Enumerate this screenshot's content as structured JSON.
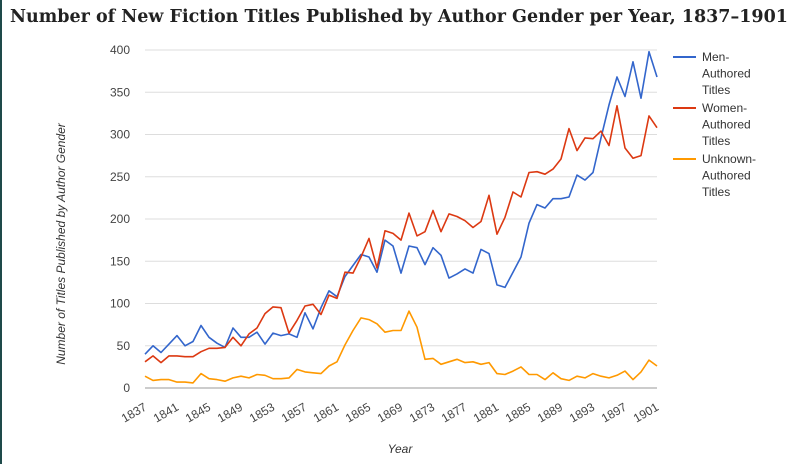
{
  "chart_data": {
    "type": "line",
    "title": "Number of New Fiction Titles Published by Author Gender per Year, 1837–1901",
    "xlabel": "Year",
    "ylabel": "Number of Titles Published by Author Gender",
    "ylim": [
      0,
      400
    ],
    "yticks": [
      0,
      50,
      100,
      150,
      200,
      250,
      300,
      350,
      400
    ],
    "xlim": [
      1837,
      1901
    ],
    "xticks": [
      1837,
      1841,
      1845,
      1849,
      1853,
      1857,
      1861,
      1865,
      1869,
      1873,
      1877,
      1881,
      1885,
      1889,
      1893,
      1897,
      1901
    ],
    "grid": "horizontal",
    "legend_position": "right",
    "x": [
      1837,
      1838,
      1839,
      1840,
      1841,
      1842,
      1843,
      1844,
      1845,
      1846,
      1847,
      1848,
      1849,
      1850,
      1851,
      1852,
      1853,
      1854,
      1855,
      1856,
      1857,
      1858,
      1859,
      1860,
      1861,
      1862,
      1863,
      1864,
      1865,
      1866,
      1867,
      1868,
      1869,
      1870,
      1871,
      1872,
      1873,
      1874,
      1875,
      1876,
      1877,
      1878,
      1879,
      1880,
      1881,
      1882,
      1883,
      1884,
      1885,
      1886,
      1887,
      1888,
      1889,
      1890,
      1891,
      1892,
      1893,
      1894,
      1895,
      1896,
      1897,
      1898,
      1899,
      1900,
      1901
    ],
    "series": [
      {
        "name": "Men-Authored Titles",
        "color": "#3366cc",
        "values": [
          40,
          50,
          42,
          52,
          62,
          50,
          55,
          74,
          60,
          53,
          48,
          71,
          60,
          60,
          66,
          52,
          65,
          62,
          64,
          60,
          89,
          70,
          95,
          115,
          108,
          132,
          145,
          158,
          155,
          137,
          175,
          168,
          136,
          168,
          166,
          146,
          166,
          157,
          130,
          135,
          141,
          136,
          164,
          159,
          122,
          119,
          137,
          155,
          195,
          217,
          213,
          224,
          224,
          226,
          252,
          246,
          255,
          296,
          335,
          368,
          345,
          386,
          343,
          398,
          368
        ]
      },
      {
        "name": "Women-Authored Titles",
        "color": "#dc3912",
        "values": [
          31,
          38,
          30,
          38,
          38,
          37,
          37,
          43,
          47,
          47,
          48,
          60,
          50,
          64,
          71,
          88,
          96,
          95,
          65,
          80,
          97,
          99,
          87,
          110,
          106,
          137,
          136,
          155,
          177,
          142,
          186,
          183,
          175,
          207,
          180,
          185,
          210,
          185,
          206,
          203,
          198,
          190,
          197,
          228,
          182,
          202,
          232,
          226,
          255,
          256,
          253,
          259,
          271,
          307,
          281,
          296,
          295,
          304,
          287,
          334,
          284,
          272,
          275,
          322,
          308
        ]
      },
      {
        "name": "Unknown-Authored Titles",
        "color": "#ff9900",
        "values": [
          14,
          9,
          10,
          10,
          7,
          7,
          6,
          17,
          11,
          10,
          8,
          12,
          14,
          12,
          16,
          15,
          11,
          11,
          12,
          22,
          19,
          18,
          17,
          26,
          31,
          51,
          68,
          83,
          81,
          76,
          66,
          68,
          68,
          91,
          72,
          34,
          35,
          28,
          31,
          34,
          30,
          31,
          28,
          30,
          17,
          16,
          20,
          25,
          16,
          16,
          10,
          18,
          11,
          9,
          14,
          12,
          17,
          14,
          12,
          15,
          20,
          10,
          19,
          33,
          26
        ]
      }
    ]
  }
}
